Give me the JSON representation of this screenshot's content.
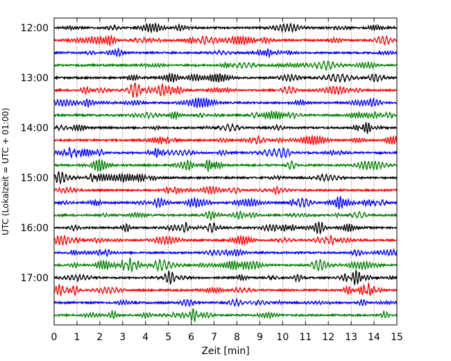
{
  "chart_data": {
    "type": "line",
    "subtype": "helicorder",
    "title": "",
    "xlabel": "Zeit  [min]",
    "ylabel": "UTC (Lokalzeit = UTC + 01:00)",
    "xlim": [
      0,
      15
    ],
    "x_ticks": [
      "0",
      "1",
      "2",
      "3",
      "4",
      "5",
      "6",
      "7",
      "8",
      "9",
      "10",
      "11",
      "12",
      "13",
      "14",
      "15"
    ],
    "y_ticks": [
      "12:00",
      "13:00",
      "14:00",
      "15:00",
      "16:00",
      "17:00"
    ],
    "trace_minutes": 15,
    "traces_per_hour": 4,
    "trace_count": 24,
    "trace_start": "12:00",
    "grid": "vertical-dotted",
    "colors": [
      "#000000",
      "#ff0000",
      "#0000ff",
      "#008000"
    ]
  }
}
